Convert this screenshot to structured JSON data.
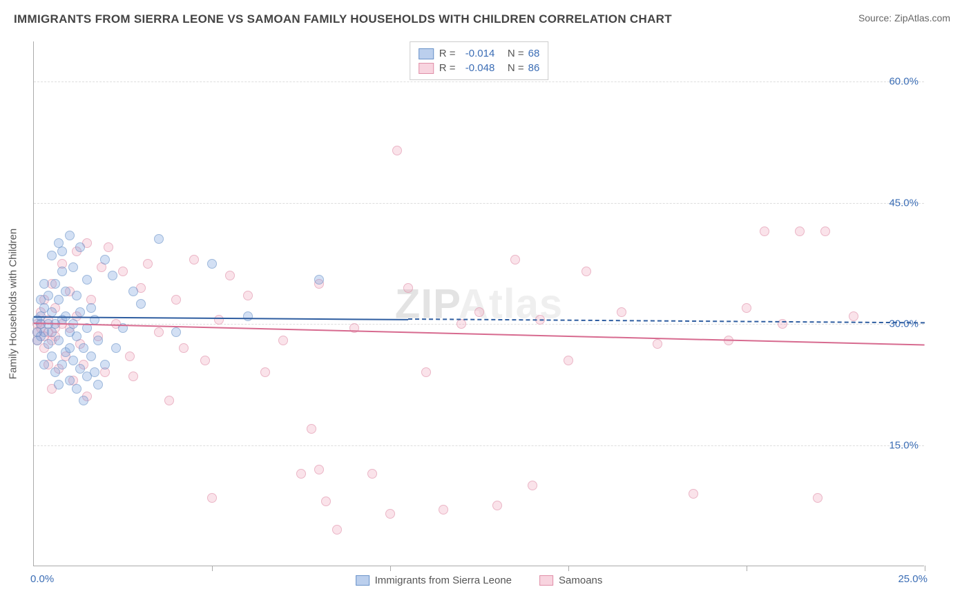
{
  "title": "IMMIGRANTS FROM SIERRA LEONE VS SAMOAN FAMILY HOUSEHOLDS WITH CHILDREN CORRELATION CHART",
  "source_label": "Source:",
  "source_value": "ZipAtlas.com",
  "yaxis_title": "Family Households with Children",
  "watermark_a": "ZIP",
  "watermark_b": "Atlas",
  "xlim": [
    0,
    25
  ],
  "ylim": [
    0,
    65
  ],
  "xticks": [
    0,
    5,
    10,
    15,
    20,
    25
  ],
  "yticks": [
    15,
    30,
    45,
    60
  ],
  "ytick_labels": [
    "15.0%",
    "30.0%",
    "45.0%",
    "60.0%"
  ],
  "x0_label": "0.0%",
  "x25_label": "25.0%",
  "colors": {
    "blue_fill": "rgba(120,160,220,0.5)",
    "blue_stroke": "#6a93c9",
    "pink_fill": "rgba(240,160,185,0.45)",
    "pink_stroke": "#e08fa8",
    "blue_line": "#2e5da0",
    "pink_line": "#d76a8f",
    "axis_label": "#3b6db5",
    "grid": "#dddddd"
  },
  "legend_top": [
    {
      "swatch": "blue",
      "r_label": "R =",
      "r": "-0.014",
      "n_label": "N =",
      "n": "68"
    },
    {
      "swatch": "pink",
      "r_label": "R =",
      "r": "-0.048",
      "n_label": "N =",
      "n": "86"
    }
  ],
  "legend_bottom": [
    {
      "swatch": "blue",
      "label": "Immigrants from Sierra Leone"
    },
    {
      "swatch": "pink",
      "label": "Samoans"
    }
  ],
  "trend_lines": {
    "blue": {
      "x1": 0,
      "y1": 31.0,
      "x2": 25,
      "y2": 30.2,
      "dashed_from_x": 10.5
    },
    "pink": {
      "x1": 0,
      "y1": 30.2,
      "x2": 25,
      "y2": 27.5
    }
  },
  "blue_points": [
    [
      0.1,
      29.0
    ],
    [
      0.1,
      30.5
    ],
    [
      0.1,
      28.0
    ],
    [
      0.2,
      31.0
    ],
    [
      0.2,
      33.0
    ],
    [
      0.2,
      30.0
    ],
    [
      0.2,
      28.5
    ],
    [
      0.3,
      29.0
    ],
    [
      0.3,
      25.0
    ],
    [
      0.3,
      32.0
    ],
    [
      0.3,
      35.0
    ],
    [
      0.4,
      30.0
    ],
    [
      0.4,
      27.5
    ],
    [
      0.4,
      33.5
    ],
    [
      0.5,
      26.0
    ],
    [
      0.5,
      31.5
    ],
    [
      0.5,
      29.0
    ],
    [
      0.5,
      38.5
    ],
    [
      0.6,
      24.0
    ],
    [
      0.6,
      30.0
    ],
    [
      0.6,
      35.0
    ],
    [
      0.7,
      22.5
    ],
    [
      0.7,
      28.0
    ],
    [
      0.7,
      33.0
    ],
    [
      0.7,
      40.0
    ],
    [
      0.8,
      25.0
    ],
    [
      0.8,
      30.5
    ],
    [
      0.8,
      36.5
    ],
    [
      0.8,
      39.0
    ],
    [
      0.9,
      26.5
    ],
    [
      0.9,
      31.0
    ],
    [
      0.9,
      34.0
    ],
    [
      1.0,
      29.0
    ],
    [
      1.0,
      23.0
    ],
    [
      1.0,
      27.0
    ],
    [
      1.0,
      41.0
    ],
    [
      1.1,
      25.5
    ],
    [
      1.1,
      30.0
    ],
    [
      1.1,
      37.0
    ],
    [
      1.2,
      22.0
    ],
    [
      1.2,
      28.5
    ],
    [
      1.2,
      33.5
    ],
    [
      1.3,
      24.5
    ],
    [
      1.3,
      31.5
    ],
    [
      1.3,
      39.5
    ],
    [
      1.4,
      20.5
    ],
    [
      1.4,
      27.0
    ],
    [
      1.5,
      23.5
    ],
    [
      1.5,
      29.5
    ],
    [
      1.5,
      35.5
    ],
    [
      1.6,
      26.0
    ],
    [
      1.6,
      32.0
    ],
    [
      1.7,
      24.0
    ],
    [
      1.7,
      30.5
    ],
    [
      1.8,
      22.5
    ],
    [
      1.8,
      28.0
    ],
    [
      2.0,
      25.0
    ],
    [
      2.0,
      38.0
    ],
    [
      2.2,
      36.0
    ],
    [
      2.3,
      27.0
    ],
    [
      2.5,
      29.5
    ],
    [
      2.8,
      34.0
    ],
    [
      3.0,
      32.5
    ],
    [
      3.5,
      40.5
    ],
    [
      4.0,
      29.0
    ],
    [
      5.0,
      37.5
    ],
    [
      6.0,
      31.0
    ],
    [
      8.0,
      35.5
    ]
  ],
  "pink_points": [
    [
      0.1,
      30.0
    ],
    [
      0.1,
      28.0
    ],
    [
      0.2,
      29.5
    ],
    [
      0.2,
      31.5
    ],
    [
      0.3,
      27.0
    ],
    [
      0.3,
      33.0
    ],
    [
      0.4,
      25.0
    ],
    [
      0.4,
      30.5
    ],
    [
      0.5,
      22.0
    ],
    [
      0.5,
      35.0
    ],
    [
      0.6,
      28.5
    ],
    [
      0.6,
      32.0
    ],
    [
      0.7,
      24.5
    ],
    [
      0.8,
      30.0
    ],
    [
      0.8,
      37.5
    ],
    [
      0.9,
      26.0
    ],
    [
      1.0,
      29.5
    ],
    [
      1.0,
      34.0
    ],
    [
      1.1,
      23.0
    ],
    [
      1.2,
      31.0
    ],
    [
      1.2,
      39.0
    ],
    [
      1.3,
      27.5
    ],
    [
      1.4,
      25.0
    ],
    [
      1.5,
      40.0
    ],
    [
      1.5,
      21.0
    ],
    [
      1.6,
      33.0
    ],
    [
      1.8,
      28.5
    ],
    [
      1.9,
      37.0
    ],
    [
      2.0,
      24.0
    ],
    [
      2.1,
      39.5
    ],
    [
      2.3,
      30.0
    ],
    [
      2.5,
      36.5
    ],
    [
      2.7,
      26.0
    ],
    [
      2.8,
      23.5
    ],
    [
      3.0,
      34.5
    ],
    [
      3.2,
      37.5
    ],
    [
      3.5,
      29.0
    ],
    [
      3.8,
      20.5
    ],
    [
      4.0,
      33.0
    ],
    [
      4.2,
      27.0
    ],
    [
      4.5,
      38.0
    ],
    [
      4.8,
      25.5
    ],
    [
      5.0,
      8.5
    ],
    [
      5.2,
      30.5
    ],
    [
      5.5,
      36.0
    ],
    [
      6.0,
      33.5
    ],
    [
      6.5,
      24.0
    ],
    [
      7.0,
      28.0
    ],
    [
      7.5,
      11.5
    ],
    [
      7.8,
      17.0
    ],
    [
      8.0,
      35.0
    ],
    [
      8.0,
      12.0
    ],
    [
      8.2,
      8.0
    ],
    [
      8.5,
      4.5
    ],
    [
      9.0,
      29.5
    ],
    [
      9.5,
      11.5
    ],
    [
      10.0,
      6.5
    ],
    [
      10.2,
      51.5
    ],
    [
      10.5,
      34.5
    ],
    [
      11.0,
      24.0
    ],
    [
      11.5,
      7.0
    ],
    [
      12.0,
      30.0
    ],
    [
      12.5,
      31.5
    ],
    [
      13.0,
      7.5
    ],
    [
      13.5,
      38.0
    ],
    [
      14.0,
      10.0
    ],
    [
      14.2,
      30.5
    ],
    [
      15.0,
      25.5
    ],
    [
      15.5,
      36.5
    ],
    [
      16.5,
      31.5
    ],
    [
      17.5,
      27.5
    ],
    [
      18.5,
      9.0
    ],
    [
      19.5,
      28.0
    ],
    [
      20.0,
      32.0
    ],
    [
      20.5,
      41.5
    ],
    [
      21.0,
      30.0
    ],
    [
      21.5,
      41.5
    ],
    [
      22.0,
      8.5
    ],
    [
      22.2,
      41.5
    ],
    [
      23.0,
      31.0
    ],
    [
      0.1,
      29.0
    ],
    [
      0.2,
      30.0
    ],
    [
      0.3,
      28.5
    ],
    [
      0.4,
      29.0
    ],
    [
      0.5,
      28.0
    ],
    [
      0.6,
      29.5
    ]
  ]
}
